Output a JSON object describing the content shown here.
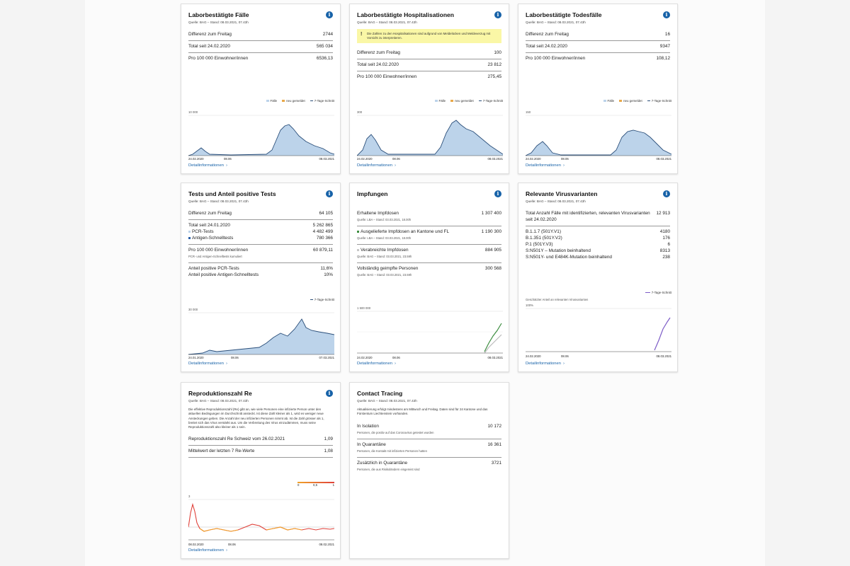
{
  "common": {
    "detail_link": "Detailinformationen",
    "info_glyph": "i"
  },
  "cards": {
    "cases": {
      "title": "Laborbestätigte Fälle",
      "source": "Quelle: BAG – Stand: 08.03.2021, 07.43h",
      "rows": [
        {
          "label": "Differenz zum Freitag",
          "value": "2744"
        },
        {
          "label": "Total seit 24.02.2020",
          "value": "565 034"
        },
        {
          "label": "Pro 100 000 Einwohner/innen",
          "value": "6536,13"
        }
      ],
      "legend": [
        "Fälle",
        "neu gemeldet",
        "7-Tage-Schnitt"
      ],
      "ymax_label": "10 000",
      "x_labels": [
        "24.02.2020",
        "08.06",
        "08.03.2021"
      ]
    },
    "hosp": {
      "title": "Laborbestätigte Hospitalisationen",
      "source": "Quelle: BAG – Stand: 08.03.2021, 07.43h",
      "warning": "Die Zahlen zu den Hospitalisationen sind aufgrund von Meldelücken und Meldeverzug mit Vorsicht zu interpretieren.",
      "warning_icon": "!",
      "rows": [
        {
          "label": "Differenz zum Freitag",
          "value": "100"
        },
        {
          "label": "Total seit 24.02.2020",
          "value": "23 812"
        },
        {
          "label": "Pro 100 000 Einwohner/innen",
          "value": "275,45"
        }
      ],
      "legend": [
        "Fälle",
        "neu gemeldet",
        "7-Tage-Schnitt"
      ],
      "ymax_label": "300",
      "x_labels": [
        "24.02.2020",
        "08.06",
        "08.03.2021"
      ]
    },
    "deaths": {
      "title": "Laborbestätigte Todesfälle",
      "source": "Quelle: BAG – Stand: 08.03.2021, 07.43h",
      "rows": [
        {
          "label": "Differenz zum Freitag",
          "value": "16"
        },
        {
          "label": "Total seit 24.02.2020",
          "value": "9347"
        },
        {
          "label": "Pro 100 000 Einwohner/innen",
          "value": "108,12"
        }
      ],
      "legend": [
        "Fälle",
        "neu gemeldet",
        "7-Tage-Schnitt"
      ],
      "ymax_label": "150",
      "x_labels": [
        "24.02.2020",
        "08.06",
        "08.03.2021"
      ]
    },
    "tests": {
      "title": "Tests und Anteil positive Tests",
      "source": "Quelle: BAG – Stand: 08.03.2021, 07.43h",
      "diff_label": "Differenz zum Freitag",
      "diff_value": "64 105",
      "total_label": "Total seit 24.01.2020",
      "total_value": "5 262 865",
      "pcr_label": "PCR-Tests",
      "pcr_value": "4 482 499",
      "antigen_label": "Antigen-Schnelltests",
      "antigen_value": "780 366",
      "per100k_label": "Pro 100 000 Einwohner/innen",
      "per100k_sub": "PCR- und Antigen-Schnelltests kumuliert",
      "per100k_value": "60 879,11",
      "pos_pcr_label": "Anteil positive PCR-Tests",
      "pos_pcr_value": "11,6%",
      "pos_ag_label": "Anteil positive Antigen-Schnelltests",
      "pos_ag_value": "10%",
      "legend": [
        "7-Tage-Schnitt"
      ],
      "ymax_label": "30 000",
      "x_labels": [
        "24.01.2020",
        "08.06",
        "07.03.2021"
      ]
    },
    "vacc": {
      "title": "Impfungen",
      "items": [
        {
          "label": "Erhaltene Impfdosen",
          "sub": "Quelle: LBA – Stand: 03.03.2021, 18.00h",
          "value": "1 307 400"
        },
        {
          "label": "Ausgelieferte Impfdosen an Kantone und FL",
          "sub": "Quelle: LBA – Stand: 03.03.2021, 18.00h",
          "value": "1 190 300"
        },
        {
          "label": "Verabreichte Impfdosen",
          "sub": "Quelle: BAG – Stand: 03.03.2021, 23.59h",
          "value": "884 905"
        },
        {
          "label": "Vollständig geimpfte Personen",
          "sub": "Quelle: BAG – Stand: 03.03.2021, 23.59h",
          "value": "300 568"
        }
      ],
      "ymax_label": "1 500 000",
      "x_labels": [
        "24.02.2020",
        "08.06",
        "08.03.2021"
      ]
    },
    "variants": {
      "title": "Relevante Virusvarianten",
      "source": "Quelle: BAG – Stand: 08.03.2021, 07.43h",
      "total_label": "Total Anzahl Fälle mit identifizierten, relevanten Virusvarianten seit 24.02.2020",
      "total_value": "12 913",
      "rows": [
        {
          "label": "B.1.1.7 (501Y.V1)",
          "value": "4180"
        },
        {
          "label": "B.1.351 (501Y.V2)",
          "value": "176"
        },
        {
          "label": "P.1 (501Y.V3)",
          "value": "6"
        },
        {
          "label": "S:N501Y – Mutation beinhaltend",
          "value": "8313"
        },
        {
          "label": "S:N501Y- und E484K-Mutation beinhaltend",
          "value": "238"
        }
      ],
      "legend": [
        "7-Tage-Schnitt"
      ],
      "chart_caption": "Geschätzter Anteil an relevanten Virusvarianten",
      "ymax_label": "100%",
      "x_labels": [
        "24.02.2020",
        "08.06",
        "08.03.2021"
      ]
    },
    "repro": {
      "title": "Reproduktionszahl Re",
      "source": "Quelle: BAG – Stand: 08.03.2021, 07.43h",
      "text": "Die effektive Reproduktionszahl (Re) gibt an, wie viele Personen eine infizierte Person unter den aktuellen Bedingungen im Durchschnitt ansteckt. Ist diese Zahl kleiner als 1, wird es weniger neue Ansteckungen geben. Die Anzahl der neu infizierten Personen nimmt ab. Ist die Zahl grösser als 1, breitet sich das Virus verstärkt aus. Um die Verbreitung des Virus einzudämmen, muss seine Reproduktionszahl also kleiner als 1 sein.",
      "rows": [
        {
          "label": "Reproduktionszahl Re Schweiz vom 26.02.2021",
          "value": "1,09"
        },
        {
          "label": "Mittelwert der letzten 7 Re-Werte",
          "value": "1,08"
        }
      ],
      "scale_labels": [
        "0",
        "0,5",
        "1"
      ],
      "ymax_label": "3",
      "x_labels": [
        "08.02.2020",
        "08.06",
        "08.02.2021"
      ]
    },
    "contact": {
      "title": "Contact Tracing",
      "source": "Quelle: BAG – Stand: 08.03.2021, 07.43h",
      "text": "Aktualisierung erfolgt mindestens am Mittwoch und Freitag. Daten sind für 24 Kantone und das Fürstentum Liechtenstein vorhanden.",
      "items": [
        {
          "label": "In Isolation",
          "sub": "Personen, die positiv auf das Coronavirus getestet wurden",
          "value": "10 172"
        },
        {
          "label": "In Quarantäne",
          "sub": "Personen, die Kontakt mit infizierten Personen hatten",
          "value": "16 361"
        },
        {
          "label": "Zusätzlich in Quarantäne",
          "sub": "Personen, die aus Risikoländern eingereist sind",
          "value": "3721"
        }
      ]
    }
  },
  "colors": {
    "accent": "#1762a8",
    "bars": "#bcd3ea",
    "line": "#2b4f7a",
    "neu": "#e8a94a",
    "green": "#3e8e41",
    "purple": "#7d5cc7",
    "red": "#e0413a",
    "orange": "#f0a32a"
  }
}
